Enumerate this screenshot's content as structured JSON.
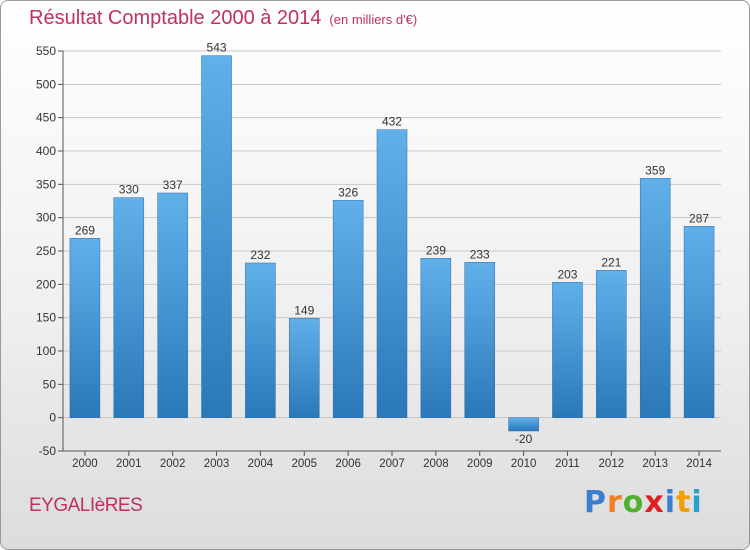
{
  "header": {
    "title": "Résultat Comptable 2000 à 2014",
    "subtitle": "(en milliers d'€)"
  },
  "footer": {
    "commune": "EYGALIèRES",
    "logo_letters": [
      "P",
      "r",
      "o",
      "x",
      "i",
      "t",
      "i"
    ],
    "logo_colors": [
      "#3a7fd0",
      "#f08020",
      "#50b030",
      "#e02020",
      "#3a7fd0",
      "#f0a000",
      "#2aa0d0"
    ]
  },
  "colors": {
    "bar_top": "#62b0ea",
    "bar_bottom": "#2a78b8",
    "grid": "#c8c8c8"
  },
  "chart_data": {
    "type": "bar",
    "title": "Résultat Comptable 2000 à 2014",
    "subtitle": "(en milliers d'€)",
    "categories": [
      "2000",
      "2001",
      "2002",
      "2003",
      "2004",
      "2005",
      "2006",
      "2007",
      "2008",
      "2009",
      "2010",
      "2011",
      "2012",
      "2013",
      "2014"
    ],
    "values": [
      269,
      330,
      337,
      543,
      232,
      149,
      326,
      432,
      239,
      233,
      -20,
      203,
      221,
      359,
      287
    ],
    "ylim": [
      -50,
      550
    ],
    "yticks": [
      -50,
      0,
      50,
      100,
      150,
      200,
      250,
      300,
      350,
      400,
      450,
      500,
      550
    ],
    "grid": true
  }
}
